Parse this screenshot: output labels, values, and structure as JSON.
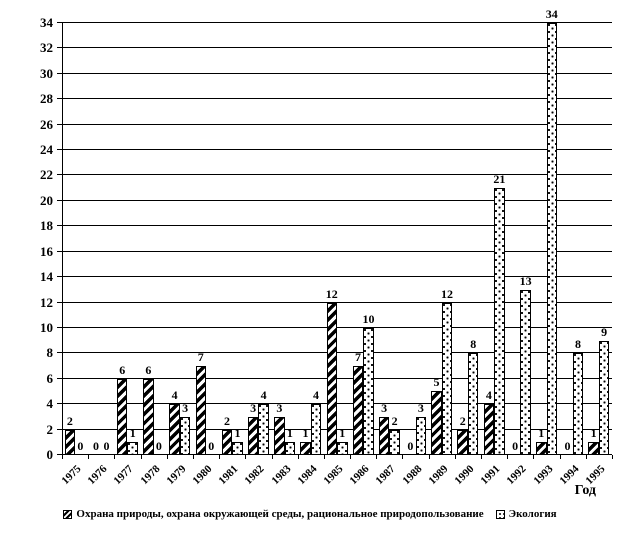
{
  "chart_data": {
    "type": "bar",
    "title": "",
    "xlabel": "Год",
    "ylabel": "",
    "ylim": [
      0,
      34
    ],
    "ytick_step": 2,
    "grid": true,
    "legend_position": "bottom",
    "data_labels": true,
    "categories": [
      "1975",
      "1976",
      "1977",
      "1978",
      "1979",
      "1980",
      "1981",
      "1982",
      "1983",
      "1984",
      "1985",
      "1986",
      "1987",
      "1988",
      "1989",
      "1990",
      "1991",
      "1992",
      "1993",
      "1994",
      "1995"
    ],
    "series": [
      {
        "name": "Охрана природы, охрана окружающей среды, рациональное природопользование",
        "pattern": "diagonal-hatch",
        "values": [
          2,
          0,
          6,
          6,
          4,
          7,
          2,
          3,
          3,
          1,
          12,
          7,
          3,
          0,
          5,
          2,
          4,
          0,
          1,
          0,
          1
        ]
      },
      {
        "name": "Экология",
        "pattern": "dots",
        "values": [
          0,
          0,
          1,
          0,
          3,
          0,
          1,
          4,
          1,
          4,
          1,
          10,
          2,
          3,
          12,
          8,
          21,
          13,
          34,
          8,
          9
        ]
      }
    ]
  },
  "colors": {
    "background": "#ffffff",
    "bar_fill": "#ffffff",
    "bar_border": "#000000",
    "grid": "#000000",
    "text": "#000000"
  }
}
